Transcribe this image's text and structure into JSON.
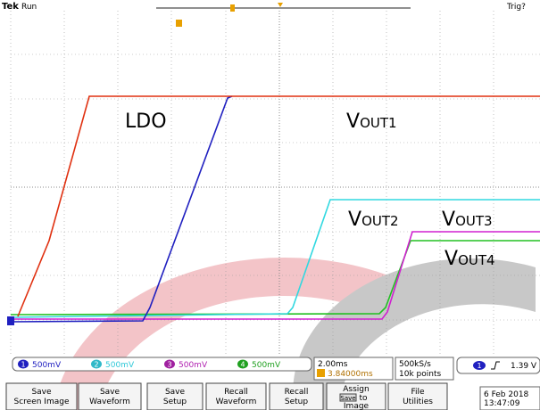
{
  "header": {
    "brand": "Tek",
    "state": "Run",
    "trigger": "Trig?"
  },
  "annotations": {
    "ldo": "LDO",
    "vout1": {
      "main": "V",
      "sub": "OUT1"
    },
    "vout2": {
      "main": "V",
      "sub": "OUT2"
    },
    "vout3": {
      "main": "V",
      "sub": "OUT3"
    },
    "vout4": {
      "main": "V",
      "sub": "OUT4"
    }
  },
  "channels": [
    {
      "number": "1",
      "scale": "500mV"
    },
    {
      "number": "2",
      "scale": "500mV"
    },
    {
      "number": "3",
      "scale": "500mV"
    },
    {
      "number": "4",
      "scale": "500mV"
    }
  ],
  "timebase": {
    "scale": "2.00ms",
    "position": "3.84000ms"
  },
  "acquisition": {
    "rate": "500kS/s",
    "length": "10k points"
  },
  "trigger_readout": {
    "source": "1",
    "level": "1.39 V"
  },
  "menu": [
    {
      "line1": "Save",
      "line2": "Screen Image"
    },
    {
      "line1": "Save",
      "line2": "Waveform"
    },
    {
      "line1": "Save",
      "line2": "Setup"
    },
    {
      "line1": "Recall",
      "line2": "Waveform"
    },
    {
      "line1": "Recall",
      "line2": "Setup"
    },
    {
      "line1": "Assign",
      "key": "Save",
      "line2": "to",
      "line3": "Image"
    },
    {
      "line1": "File",
      "line2": "Utilities"
    }
  ],
  "clock": {
    "date": "6 Feb 2018",
    "time": "13:47:09"
  }
}
